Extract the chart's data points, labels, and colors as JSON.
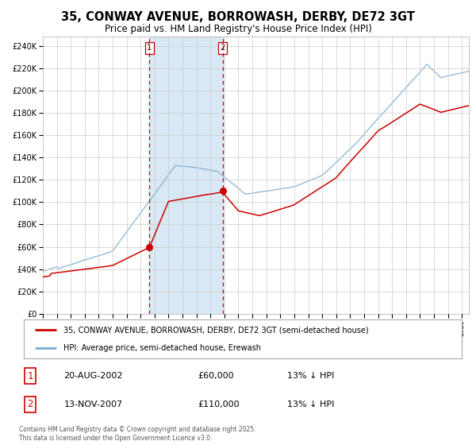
{
  "title": "35, CONWAY AVENUE, BORROWASH, DERBY, DE72 3GT",
  "subtitle": "Price paid vs. HM Land Registry's House Price Index (HPI)",
  "title_fontsize": 10.5,
  "subtitle_fontsize": 8.5,
  "ylabel_ticks": [
    "£0",
    "£20K",
    "£40K",
    "£60K",
    "£80K",
    "£100K",
    "£120K",
    "£140K",
    "£160K",
    "£180K",
    "£200K",
    "£220K",
    "£240K"
  ],
  "ytick_values": [
    0,
    20000,
    40000,
    60000,
    80000,
    100000,
    120000,
    140000,
    160000,
    180000,
    200000,
    220000,
    240000
  ],
  "ylim": [
    0,
    248000
  ],
  "xlim_start": 1995.0,
  "xlim_end": 2025.5,
  "sale1_date": 2002.636,
  "sale1_price": 60000,
  "sale2_date": 2007.869,
  "sale2_price": 110000,
  "shaded_color": "#d8e8f5",
  "vline_color": "#cc0000",
  "dot_color": "#cc0000",
  "red_line_color": "#cc0000",
  "blue_line_color": "#7aabcf",
  "legend_label_red": "35, CONWAY AVENUE, BORROWASH, DERBY, DE72 3GT (semi-detached house)",
  "legend_label_blue": "HPI: Average price, semi-detached house, Erewash",
  "table_row1": [
    "1",
    "20-AUG-2002",
    "£60,000",
    "13% ↓ HPI"
  ],
  "table_row2": [
    "2",
    "13-NOV-2007",
    "£110,000",
    "13% ↓ HPI"
  ],
  "footnote": "Contains HM Land Registry data © Crown copyright and database right 2025.\nThis data is licensed under the Open Government Licence v3.0.",
  "grid_color": "#cccccc",
  "background_color": "#ffffff"
}
